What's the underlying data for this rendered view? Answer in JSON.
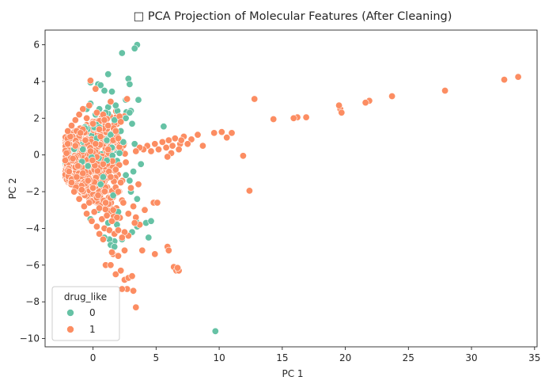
{
  "chart_data": {
    "type": "scatter",
    "title": "□ PCA Projection of Molecular Features (After Cleaning)",
    "xlabel": "PC 1",
    "ylabel": "PC 2",
    "xlim": [
      -3.8,
      35.2
    ],
    "ylim": [
      -10.45,
      6.8
    ],
    "x_ticks": [
      0,
      5,
      10,
      15,
      20,
      25,
      30,
      35
    ],
    "y_ticks": [
      -10,
      -8,
      -6,
      -4,
      -2,
      0,
      2,
      4,
      6
    ],
    "grid": false,
    "legend": {
      "title": "drug_like",
      "placement": "lower-left",
      "entries": [
        {
          "label": "0",
          "color": "#66c2a5"
        },
        {
          "label": "1",
          "color": "#fc8d62"
        }
      ]
    },
    "series": [
      {
        "name": "0",
        "color": "#66c2a5",
        "points": [
          [
            3.5,
            6.0
          ],
          [
            3.3,
            5.8
          ],
          [
            2.3,
            5.55
          ],
          [
            1.2,
            4.4
          ],
          [
            2.8,
            4.15
          ],
          [
            2.9,
            3.85
          ],
          [
            1.5,
            3.45
          ],
          [
            0.4,
            3.85
          ],
          [
            0.6,
            3.8
          ],
          [
            -0.2,
            3.95
          ],
          [
            0.9,
            3.5
          ],
          [
            3.6,
            3.0
          ],
          [
            2.6,
            3.0
          ],
          [
            3.0,
            2.4
          ],
          [
            2.9,
            2.3
          ],
          [
            0.5,
            2.5
          ],
          [
            1.2,
            2.6
          ],
          [
            1.8,
            2.7
          ],
          [
            1.0,
            2.3
          ],
          [
            0.2,
            2.2
          ],
          [
            0.1,
            1.5
          ],
          [
            -0.2,
            2.8
          ],
          [
            -0.5,
            2.5
          ],
          [
            1.7,
            1.9
          ],
          [
            2.6,
            2.0
          ],
          [
            3.1,
            1.7
          ],
          [
            2.2,
            1.3
          ],
          [
            1.4,
            1.1
          ],
          [
            0.5,
            1.5
          ],
          [
            5.6,
            1.55
          ],
          [
            1.1,
            0.8
          ],
          [
            0.3,
            0.9
          ],
          [
            3.3,
            0.6
          ],
          [
            2.4,
            0.7
          ],
          [
            3.8,
            -0.5
          ],
          [
            3.2,
            -0.9
          ],
          [
            2.9,
            -1.4
          ],
          [
            2.6,
            -1.1
          ],
          [
            3.0,
            -2.0
          ],
          [
            3.5,
            -2.4
          ],
          [
            3.4,
            -3.6
          ],
          [
            3.5,
            -3.9
          ],
          [
            4.2,
            -3.7
          ],
          [
            4.6,
            -3.6
          ],
          [
            3.1,
            -4.2
          ],
          [
            4.4,
            -4.5
          ],
          [
            2.0,
            -3.1
          ],
          [
            1.2,
            -3.7
          ],
          [
            1.9,
            -3.8
          ],
          [
            2.3,
            -4.6
          ],
          [
            1.7,
            -4.7
          ],
          [
            1.3,
            -4.6
          ],
          [
            0.9,
            -4.5
          ],
          [
            -0.2,
            -3.5
          ],
          [
            0.4,
            -3.0
          ],
          [
            1.0,
            -2.6
          ],
          [
            1.6,
            -2.2
          ],
          [
            0.6,
            -1.6
          ],
          [
            1.1,
            -0.3
          ],
          [
            1.4,
            -4.9
          ],
          [
            1.7,
            -5.0
          ],
          [
            6.5,
            -6.2
          ],
          [
            9.7,
            -9.6
          ],
          [
            -0.8,
            0.3
          ],
          [
            -0.4,
            -0.6
          ],
          [
            0.8,
            -1.2
          ],
          [
            1.5,
            0.4
          ],
          [
            2.1,
            0.1
          ]
        ]
      },
      {
        "name": "1",
        "color": "#fc8d62",
        "points": [
          [
            33.7,
            4.25
          ],
          [
            32.6,
            4.1
          ],
          [
            27.9,
            3.5
          ],
          [
            23.7,
            3.2
          ],
          [
            21.9,
            2.95
          ],
          [
            21.6,
            2.85
          ],
          [
            19.6,
            2.5
          ],
          [
            19.5,
            2.7
          ],
          [
            19.7,
            2.3
          ],
          [
            16.9,
            2.05
          ],
          [
            16.2,
            2.05
          ],
          [
            15.9,
            2.0
          ],
          [
            14.3,
            1.95
          ],
          [
            12.8,
            3.05
          ],
          [
            11.0,
            1.2
          ],
          [
            10.6,
            0.95
          ],
          [
            10.2,
            1.25
          ],
          [
            9.6,
            1.2
          ],
          [
            11.9,
            -0.05
          ],
          [
            12.4,
            -1.95
          ],
          [
            8.7,
            0.5
          ],
          [
            8.3,
            1.1
          ],
          [
            7.8,
            0.85
          ],
          [
            7.5,
            0.6
          ],
          [
            7.2,
            1.0
          ],
          [
            6.9,
            0.6
          ],
          [
            6.5,
            0.9
          ],
          [
            6.3,
            0.5
          ],
          [
            6.0,
            0.8
          ],
          [
            5.8,
            0.4
          ],
          [
            5.5,
            0.7
          ],
          [
            5.2,
            0.3
          ],
          [
            4.9,
            0.6
          ],
          [
            4.6,
            0.2
          ],
          [
            4.3,
            0.5
          ],
          [
            4.0,
            0.3
          ],
          [
            3.7,
            0.4
          ],
          [
            3.4,
            0.2
          ],
          [
            6.2,
            0.1
          ],
          [
            5.9,
            -0.1
          ],
          [
            6.8,
            0.3
          ],
          [
            7.0,
            0.8
          ],
          [
            12.8,
            3.05
          ],
          [
            -0.2,
            4.05
          ],
          [
            0.2,
            3.6
          ],
          [
            0.8,
            2.2
          ],
          [
            2.1,
            2.1
          ],
          [
            2.7,
            3.05
          ],
          [
            2.2,
            1.8
          ],
          [
            1.8,
            1.3
          ],
          [
            1.4,
            2.9
          ],
          [
            0.9,
            1.9
          ],
          [
            -2.0,
            0.6
          ],
          [
            -1.8,
            1.0
          ],
          [
            -1.6,
            -0.2
          ],
          [
            -1.4,
            0.5
          ],
          [
            -1.2,
            -0.6
          ],
          [
            -1.0,
            1.2
          ],
          [
            -0.8,
            -1.0
          ],
          [
            -0.6,
            0.8
          ],
          [
            -0.4,
            -1.4
          ],
          [
            -0.2,
            0.2
          ],
          [
            0.0,
            -1.8
          ],
          [
            0.2,
            0.6
          ],
          [
            0.4,
            -2.2
          ],
          [
            0.6,
            1.0
          ],
          [
            0.8,
            -0.5
          ],
          [
            1.0,
            -2.6
          ],
          [
            1.2,
            0.3
          ],
          [
            1.4,
            -1.2
          ],
          [
            1.6,
            -3.0
          ],
          [
            1.8,
            -0.8
          ],
          [
            2.0,
            -2.0
          ],
          [
            2.2,
            -1.5
          ],
          [
            2.4,
            -2.6
          ],
          [
            2.6,
            -0.4
          ],
          [
            2.8,
            -3.2
          ],
          [
            3.0,
            -1.8
          ],
          [
            3.2,
            -2.8
          ],
          [
            3.4,
            -3.4
          ],
          [
            3.6,
            -1.6
          ],
          [
            -1.9,
            -0.9
          ],
          [
            -1.7,
            -1.5
          ],
          [
            -1.5,
            -2.0
          ],
          [
            -1.3,
            -1.2
          ],
          [
            -1.1,
            -2.4
          ],
          [
            -0.9,
            -1.9
          ],
          [
            -0.7,
            -2.8
          ],
          [
            -0.5,
            -3.2
          ],
          [
            -0.3,
            -2.6
          ],
          [
            -0.1,
            -3.6
          ],
          [
            0.1,
            -3.1
          ],
          [
            0.3,
            -3.9
          ],
          [
            0.5,
            -2.9
          ],
          [
            0.7,
            -3.5
          ],
          [
            0.9,
            -4.0
          ],
          [
            1.1,
            -3.3
          ],
          [
            1.3,
            -4.1
          ],
          [
            1.5,
            -3.6
          ],
          [
            1.7,
            -4.3
          ],
          [
            1.9,
            -3.4
          ],
          [
            -2.1,
            0.1
          ],
          [
            -2.2,
            -0.3
          ],
          [
            -2.0,
            1.3
          ],
          [
            -1.7,
            1.6
          ],
          [
            -1.4,
            1.9
          ],
          [
            -1.1,
            2.2
          ],
          [
            -0.8,
            2.5
          ],
          [
            -0.5,
            2.0
          ],
          [
            -0.3,
            2.7
          ],
          [
            0.0,
            1.7
          ],
          [
            0.3,
            2.3
          ],
          [
            0.5,
            1.4
          ],
          [
            1.2,
            1.6
          ],
          [
            1.6,
            0.8
          ],
          [
            2.0,
            0.9
          ],
          [
            4.8,
            -2.6
          ],
          [
            5.1,
            -2.6
          ],
          [
            4.1,
            -3.0
          ],
          [
            3.7,
            -3.8
          ],
          [
            3.3,
            -3.7
          ],
          [
            2.8,
            -4.4
          ],
          [
            2.5,
            -4.2
          ],
          [
            2.3,
            -4.5
          ],
          [
            2.0,
            -4.1
          ],
          [
            1.6,
            -5.4
          ],
          [
            1.5,
            -5.3
          ],
          [
            2.0,
            -5.5
          ],
          [
            2.5,
            -5.2
          ],
          [
            3.9,
            -5.2
          ],
          [
            4.9,
            -5.4
          ],
          [
            5.9,
            -5.0
          ],
          [
            6.0,
            -5.2
          ],
          [
            0.5,
            -4.3
          ],
          [
            0.8,
            -4.6
          ],
          [
            1.0,
            -6.0
          ],
          [
            1.4,
            -6.0
          ],
          [
            1.8,
            -6.5
          ],
          [
            2.2,
            -6.3
          ],
          [
            2.5,
            -6.8
          ],
          [
            2.8,
            -6.7
          ],
          [
            3.1,
            -6.6
          ],
          [
            2.7,
            -7.3
          ],
          [
            2.3,
            -7.3
          ],
          [
            3.2,
            -7.4
          ],
          [
            3.4,
            -8.3
          ],
          [
            6.4,
            -6.1
          ],
          [
            6.6,
            -6.3
          ],
          [
            6.8,
            -6.3
          ],
          [
            6.7,
            -6.15
          ]
        ]
      }
    ]
  }
}
